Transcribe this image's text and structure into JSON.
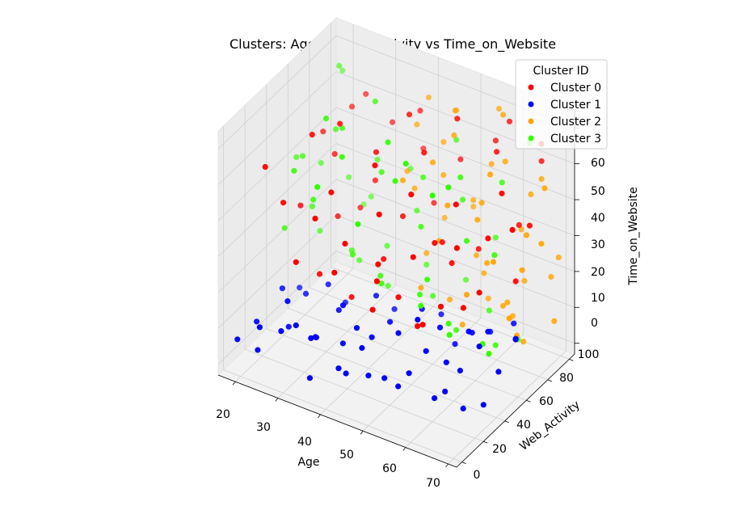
{
  "chart_data": {
    "type": "scatter3d",
    "title": "Clusters: Age vs Web_Activity vs Time_on_Website",
    "xlabel": "Age",
    "ylabel": "Web_Activity",
    "zlabel": "Time_on_Website",
    "xlim": [
      16,
      72
    ],
    "ylim": [
      -5,
      105
    ],
    "zlim": [
      -3,
      65
    ],
    "xticks": [
      "20",
      "30",
      "40",
      "50",
      "60",
      "70"
    ],
    "yticks": [
      "0",
      "20",
      "40",
      "60",
      "80",
      "100"
    ],
    "zticks": [
      "0",
      "10",
      "20",
      "30",
      "40",
      "50",
      "60"
    ],
    "grid": true,
    "legend": {
      "title": "Cluster ID",
      "position": "top-right"
    },
    "colors": [
      "#ff0000",
      "#0000ff",
      "#ffa500",
      "#33ff00"
    ],
    "series": [
      {
        "name": "Cluster 0",
        "color": "#ff0000",
        "points": [
          [
            22,
            15,
            52
          ],
          [
            25,
            20,
            42
          ],
          [
            28,
            35,
            58
          ],
          [
            30,
            12,
            30
          ],
          [
            32,
            45,
            60
          ],
          [
            35,
            25,
            48
          ],
          [
            38,
            55,
            52
          ],
          [
            40,
            18,
            38
          ],
          [
            42,
            70,
            60
          ],
          [
            45,
            30,
            45
          ],
          [
            48,
            60,
            55
          ],
          [
            50,
            40,
            50
          ],
          [
            52,
            75,
            62
          ],
          [
            55,
            22,
            40
          ],
          [
            58,
            50,
            48
          ],
          [
            60,
            80,
            55
          ],
          [
            62,
            35,
            42
          ],
          [
            65,
            65,
            50
          ],
          [
            68,
            90,
            58
          ],
          [
            70,
            55,
            45
          ],
          [
            24,
            40,
            35
          ],
          [
            27,
            60,
            45
          ],
          [
            31,
            30,
            22
          ],
          [
            34,
            70,
            38
          ],
          [
            37,
            20,
            28
          ],
          [
            41,
            50,
            25
          ],
          [
            44,
            85,
            32
          ],
          [
            47,
            40,
            20
          ],
          [
            51,
            65,
            30
          ],
          [
            54,
            30,
            18
          ],
          [
            57,
            75,
            28
          ],
          [
            61,
            45,
            22
          ],
          [
            64,
            85,
            35
          ],
          [
            67,
            70,
            25
          ],
          [
            26,
            80,
            52
          ],
          [
            29,
            55,
            30
          ],
          [
            33,
            90,
            48
          ],
          [
            36,
            40,
            15
          ],
          [
            39,
            95,
            42
          ],
          [
            43,
            60,
            35
          ],
          [
            46,
            25,
            33
          ],
          [
            49,
            90,
            45
          ],
          [
            53,
            50,
            35
          ],
          [
            56,
            95,
            52
          ],
          [
            59,
            15,
            25
          ],
          [
            63,
            60,
            38
          ],
          [
            66,
            40,
            30
          ],
          [
            69,
            75,
            40
          ],
          [
            23,
            65,
            48
          ],
          [
            28,
            85,
            55
          ],
          [
            35,
            10,
            45
          ],
          [
            42,
            38,
            55
          ],
          [
            48,
            12,
            25
          ],
          [
            55,
            58,
            28
          ],
          [
            62,
            20,
            30
          ],
          [
            66,
            98,
            50
          ],
          [
            30,
            72,
            28
          ],
          [
            40,
            88,
            55
          ],
          [
            50,
            8,
            35
          ],
          [
            60,
            92,
            60
          ]
        ]
      },
      {
        "name": "Cluster 1",
        "color": "#0000ff",
        "points": [
          [
            18,
            5,
            5
          ],
          [
            20,
            15,
            8
          ],
          [
            22,
            8,
            3
          ],
          [
            25,
            25,
            6
          ],
          [
            27,
            10,
            10
          ],
          [
            30,
            30,
            4
          ],
          [
            32,
            18,
            8
          ],
          [
            35,
            5,
            2
          ],
          [
            37,
            28,
            6
          ],
          [
            40,
            12,
            5
          ],
          [
            42,
            35,
            8
          ],
          [
            45,
            20,
            3
          ],
          [
            47,
            40,
            10
          ],
          [
            50,
            15,
            6
          ],
          [
            52,
            30,
            4
          ],
          [
            55,
            8,
            8
          ],
          [
            57,
            45,
            5
          ],
          [
            60,
            22,
            3
          ],
          [
            62,
            38,
            7
          ],
          [
            65,
            12,
            10
          ],
          [
            68,
            50,
            6
          ],
          [
            70,
            28,
            4
          ],
          [
            21,
            35,
            12
          ],
          [
            24,
            45,
            9
          ],
          [
            28,
            50,
            12
          ],
          [
            33,
            40,
            10
          ],
          [
            38,
            55,
            12
          ],
          [
            43,
            48,
            9
          ],
          [
            48,
            58,
            12
          ],
          [
            53,
            55,
            10
          ],
          [
            58,
            65,
            8
          ],
          [
            63,
            60,
            12
          ],
          [
            67,
            70,
            9
          ],
          [
            26,
            20,
            15
          ],
          [
            31,
            8,
            14
          ],
          [
            36,
            32,
            15
          ],
          [
            41,
            25,
            13
          ],
          [
            46,
            10,
            14
          ],
          [
            51,
            42,
            15
          ],
          [
            56,
            30,
            12
          ],
          [
            61,
            50,
            14
          ],
          [
            66,
            40,
            15
          ],
          [
            69,
            62,
            12
          ],
          [
            20,
            55,
            6
          ],
          [
            29,
            62,
            4
          ],
          [
            39,
            68,
            5
          ],
          [
            49,
            72,
            7
          ],
          [
            59,
            78,
            5
          ],
          [
            64,
            80,
            9
          ],
          [
            34,
            15,
            10
          ],
          [
            44,
            3,
            8
          ],
          [
            54,
            65,
            3
          ],
          [
            24,
            2,
            12
          ],
          [
            66,
            25,
            2
          ]
        ]
      },
      {
        "name": "Cluster 2",
        "color": "#ffa500",
        "points": [
          [
            40,
            85,
            52
          ],
          [
            45,
            90,
            48
          ],
          [
            50,
            80,
            55
          ],
          [
            55,
            95,
            45
          ],
          [
            60,
            88,
            50
          ],
          [
            65,
            92,
            42
          ],
          [
            70,
            85,
            48
          ],
          [
            42,
            75,
            38
          ],
          [
            47,
            82,
            42
          ],
          [
            52,
            90,
            35
          ],
          [
            57,
            78,
            40
          ],
          [
            62,
            95,
            30
          ],
          [
            67,
            80,
            35
          ],
          [
            44,
            95,
            25
          ],
          [
            49,
            70,
            28
          ],
          [
            54,
            85,
            22
          ],
          [
            59,
            75,
            25
          ],
          [
            64,
            90,
            18
          ],
          [
            69,
            95,
            20
          ],
          [
            46,
            65,
            15
          ],
          [
            51,
            72,
            12
          ],
          [
            56,
            88,
            10
          ],
          [
            61,
            82,
            12
          ],
          [
            66,
            75,
            8
          ],
          [
            71,
            90,
            10
          ],
          [
            43,
            60,
            45
          ],
          [
            48,
            68,
            50
          ],
          [
            53,
            62,
            42
          ],
          [
            58,
            70,
            38
          ],
          [
            63,
            65,
            30
          ],
          [
            68,
            72,
            28
          ],
          [
            41,
            92,
            58
          ],
          [
            46,
            98,
            55
          ],
          [
            56,
            98,
            60
          ],
          [
            61,
            70,
            52
          ],
          [
            66,
            98,
            45
          ],
          [
            71,
            78,
            35
          ],
          [
            58,
            60,
            20
          ],
          [
            63,
            78,
            15
          ],
          [
            68,
            60,
            18
          ],
          [
            70,
            98,
            25
          ],
          [
            50,
            98,
            30
          ],
          [
            55,
            68,
            8
          ],
          [
            60,
            95,
            5
          ],
          [
            65,
            85,
            3
          ],
          [
            44,
            78,
            20
          ],
          [
            39,
            80,
            40
          ],
          [
            54,
            92,
            15
          ],
          [
            49,
            85,
            60
          ],
          [
            59,
            90,
            62
          ]
        ]
      },
      {
        "name": "Cluster 3",
        "color": "#33ff00",
        "points": [
          [
            18,
            60,
            40
          ],
          [
            20,
            75,
            35
          ],
          [
            22,
            50,
            45
          ],
          [
            24,
            85,
            30
          ],
          [
            26,
            65,
            50
          ],
          [
            28,
            90,
            25
          ],
          [
            30,
            55,
            55
          ],
          [
            32,
            80,
            40
          ],
          [
            34,
            70,
            60
          ],
          [
            36,
            95,
            35
          ],
          [
            38,
            60,
            45
          ],
          [
            40,
            85,
            28
          ],
          [
            42,
            50,
            58
          ],
          [
            44,
            75,
            42
          ],
          [
            46,
            65,
            32
          ],
          [
            48,
            90,
            50
          ],
          [
            50,
            55,
            22
          ],
          [
            52,
            80,
            38
          ],
          [
            54,
            70,
            48
          ],
          [
            56,
            95,
            25
          ],
          [
            58,
            60,
            35
          ],
          [
            60,
            85,
            45
          ],
          [
            62,
            70,
            30
          ],
          [
            64,
            95,
            55
          ],
          [
            19,
            45,
            25
          ],
          [
            21,
            70,
            18
          ],
          [
            23,
            55,
            30
          ],
          [
            25,
            95,
            20
          ],
          [
            27,
            40,
            38
          ],
          [
            29,
            75,
            12
          ],
          [
            31,
            60,
            20
          ],
          [
            33,
            85,
            15
          ],
          [
            35,
            45,
            25
          ],
          [
            37,
            70,
            10
          ],
          [
            39,
            55,
            18
          ],
          [
            41,
            90,
            12
          ],
          [
            43,
            40,
            22
          ],
          [
            45,
            80,
            8
          ],
          [
            47,
            60,
            15
          ],
          [
            49,
            95,
            10
          ],
          [
            51,
            45,
            18
          ],
          [
            53,
            70,
            5
          ],
          [
            55,
            55,
            12
          ],
          [
            57,
            85,
            8
          ],
          [
            59,
            40,
            15
          ],
          [
            61,
            75,
            3
          ],
          [
            63,
            55,
            10
          ],
          [
            65,
            80,
            5
          ],
          [
            67,
            45,
            12
          ],
          [
            20,
            95,
            55
          ],
          [
            25,
            30,
            48
          ],
          [
            30,
            40,
            62
          ],
          [
            35,
            35,
            55
          ],
          [
            40,
            30,
            40
          ],
          [
            45,
            45,
            50
          ],
          [
            50,
            35,
            60
          ],
          [
            55,
            40,
            52
          ],
          [
            60,
            35,
            58
          ],
          [
            23,
            80,
            62
          ],
          [
            33,
            20,
            50
          ]
        ]
      }
    ]
  }
}
